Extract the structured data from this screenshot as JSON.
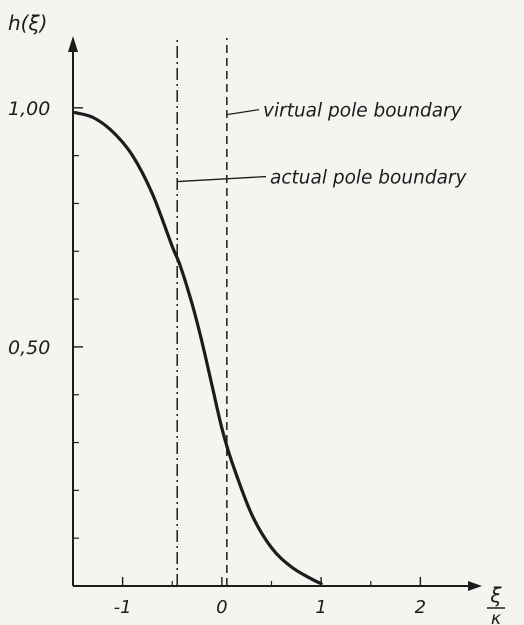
{
  "chart_data": {
    "type": "line",
    "title": "",
    "ylabel": "h(ξ)",
    "xlabel": {
      "numerator": "ξ",
      "denominator": "κ"
    },
    "xlim": [
      -1.5,
      2.5
    ],
    "ylim": [
      0,
      1.1
    ],
    "x_ticks": [
      {
        "value": -1,
        "label": "-1"
      },
      {
        "value": 0,
        "label": "0"
      },
      {
        "value": 1,
        "label": "1"
      },
      {
        "value": 2,
        "label": "2"
      }
    ],
    "x_minor_ticks": [
      -0.5,
      0.5,
      1.5
    ],
    "y_ticks": [
      {
        "value": 0.5,
        "label": "0,50"
      },
      {
        "value": 1.0,
        "label": "1,00"
      }
    ],
    "y_minor_ticks": [
      0.1,
      0.2,
      0.3,
      0.4,
      0.6,
      0.7,
      0.8,
      0.9
    ],
    "series": [
      {
        "x": [
          -1.48,
          -1.3,
          -1.1,
          -0.9,
          -0.7,
          -0.5,
          -0.42,
          -0.3,
          -0.2,
          -0.1,
          0.0,
          0.1,
          0.3,
          0.5,
          0.7,
          0.9,
          1.0
        ],
        "y": [
          0.99,
          0.98,
          0.95,
          0.9,
          0.82,
          0.71,
          0.67,
          0.59,
          0.51,
          0.42,
          0.33,
          0.26,
          0.15,
          0.08,
          0.04,
          0.015,
          0.005
        ]
      }
    ],
    "vertical_lines": [
      {
        "x": -0.45,
        "style": "dash-dot"
      },
      {
        "x": 0.05,
        "style": "dashed"
      }
    ],
    "annotations": [
      {
        "text": "virtual pole boundary",
        "points_to_x": 0.05,
        "y": 0.99
      },
      {
        "text": "actual pole boundary",
        "points_to_x": -0.45,
        "y": 0.85
      }
    ],
    "grid": false,
    "legend": "none"
  }
}
